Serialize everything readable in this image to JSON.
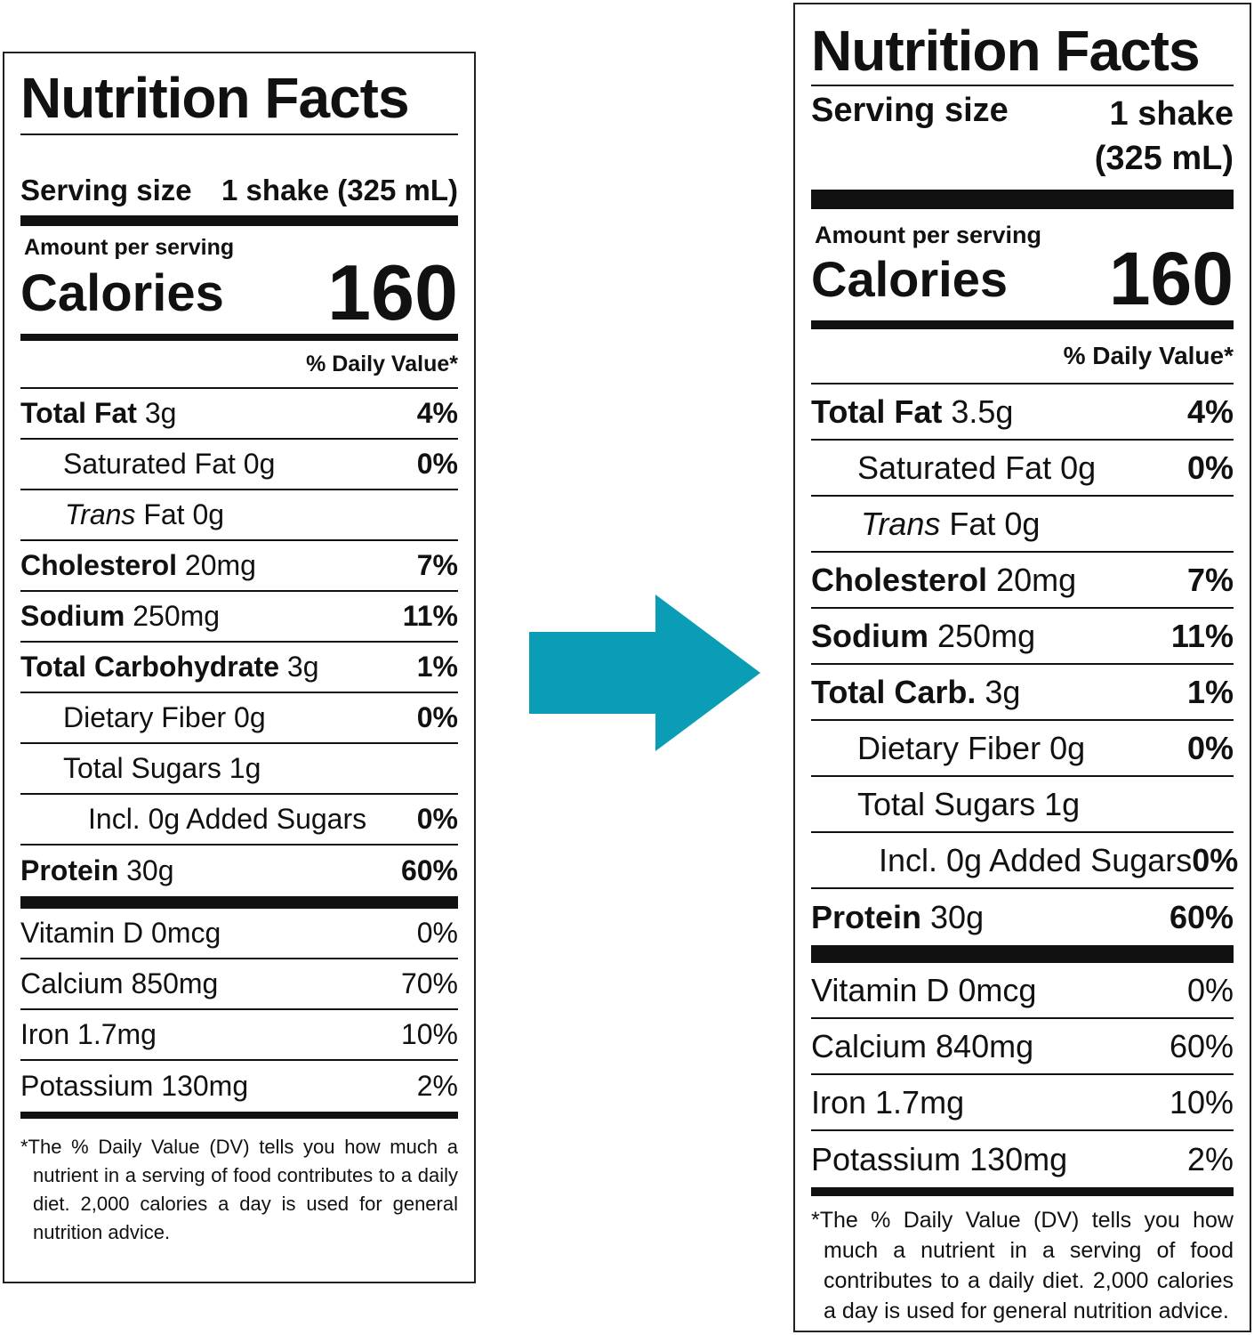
{
  "old_label": {
    "title": "Nutrition Facts",
    "serving_size_label": "Serving size",
    "serving_size_value": "1 shake (325 mL)",
    "amount_per_serving": "Amount per serving",
    "calories_label": "Calories",
    "calories_value": "160",
    "daily_value_header": "% Daily Value*",
    "nutrients": [
      {
        "name": "Total Fat",
        "amount": "3g",
        "dv": "4%"
      },
      {
        "name": "Saturated Fat",
        "amount": "0g",
        "dv": "0%"
      },
      {
        "name": "Trans",
        "amount": "Fat 0g",
        "dv": ""
      },
      {
        "name": "Cholesterol",
        "amount": "20mg",
        "dv": "7%"
      },
      {
        "name": "Sodium",
        "amount": "250mg",
        "dv": "11%"
      },
      {
        "name": "Total Carbohydrate",
        "amount": "3g",
        "dv": "1%"
      },
      {
        "name": "Dietary Fiber",
        "amount": "0g",
        "dv": "0%"
      },
      {
        "name": "Total Sugars",
        "amount": "1g",
        "dv": ""
      },
      {
        "name": "Incl. 0g Added Sugars",
        "amount": "",
        "dv": "0%"
      },
      {
        "name": "Protein",
        "amount": "30g",
        "dv": "60%"
      }
    ],
    "vitamins": [
      {
        "name": "Vitamin D 0mcg",
        "dv": "0%"
      },
      {
        "name": "Calcium 850mg",
        "dv": "70%"
      },
      {
        "name": "Iron 1.7mg",
        "dv": "10%"
      },
      {
        "name": "Potassium 130mg",
        "dv": "2%"
      }
    ],
    "footnote": "*The % Daily Value (DV) tells you how much a nutrient in a serving of food contributes to a daily diet. 2,000 calories a day is used for general nutrition advice."
  },
  "new_label": {
    "title": "Nutrition Facts",
    "serving_size_label": "Serving size",
    "serving_size_value_line1": "1 shake",
    "serving_size_value_line2": "(325 mL)",
    "amount_per_serving": "Amount per serving",
    "calories_label": "Calories",
    "calories_value": "160",
    "daily_value_header": "% Daily Value*",
    "nutrients": [
      {
        "name": "Total Fat",
        "amount": "3.5g",
        "dv": "4%"
      },
      {
        "name": "Saturated Fat",
        "amount": "0g",
        "dv": "0%"
      },
      {
        "name": "Trans",
        "amount": "Fat 0g",
        "dv": ""
      },
      {
        "name": "Cholesterol",
        "amount": "20mg",
        "dv": "7%"
      },
      {
        "name": "Sodium",
        "amount": "250mg",
        "dv": "11%"
      },
      {
        "name": "Total Carb.",
        "amount": "3g",
        "dv": "1%"
      },
      {
        "name": "Dietary Fiber",
        "amount": "0g",
        "dv": "0%"
      },
      {
        "name": "Total Sugars",
        "amount": "1g",
        "dv": ""
      },
      {
        "name": "Incl. 0g Added Sugars",
        "amount": "",
        "dv": "0%"
      },
      {
        "name": "Protein",
        "amount": "30g",
        "dv": "60%"
      }
    ],
    "vitamins": [
      {
        "name": "Vitamin D 0mcg",
        "dv": "0%"
      },
      {
        "name": "Calcium 840mg",
        "dv": "60%"
      },
      {
        "name": "Iron 1.7mg",
        "dv": "10%"
      },
      {
        "name": "Potassium 130mg",
        "dv": "2%"
      }
    ],
    "footnote": "*The % Daily Value (DV) tells you how much a nutrient in a serving of food contributes to a daily diet. 2,000 calories a day is used for general nutrition advice."
  },
  "arrow": {
    "color": "#0a9db5",
    "icon": "right-arrow-icon"
  }
}
